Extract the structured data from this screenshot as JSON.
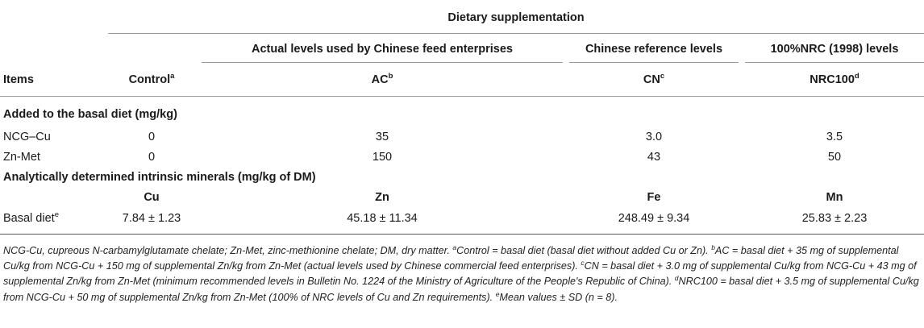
{
  "header": {
    "dietary_supplementation": "Dietary supplementation",
    "group_actual": "Actual levels used by Chinese feed enterprises",
    "group_chinese": "Chinese reference levels",
    "group_nrc": "100%NRC (1998) levels",
    "items": "Items",
    "control": "Control",
    "control_sup": "a",
    "ac": "AC",
    "ac_sup": "b",
    "cn": "CN",
    "cn_sup": "c",
    "nrc100": "NRC100",
    "nrc100_sup": "d"
  },
  "section1": {
    "title": "Added to the basal diet (mg/kg)",
    "rows": [
      {
        "item": "NCG–Cu",
        "control": "0",
        "ac": "35",
        "cn": "3.0",
        "nrc": "3.5"
      },
      {
        "item": "Zn-Met",
        "control": "0",
        "ac": "150",
        "cn": "43",
        "nrc": "50"
      }
    ]
  },
  "section2": {
    "title": "Analytically determined intrinsic minerals (mg/kg of DM)",
    "cols": [
      "Cu",
      "Zn",
      "Fe",
      "Mn"
    ],
    "row_label": "Basal diet",
    "row_label_sup": "e",
    "values": [
      "7.84 ± 1.23",
      "45.18 ± 11.34",
      "248.49 ± 9.34",
      "25.83 ± 2.23"
    ]
  },
  "footnote": {
    "abbrev": "NCG-Cu, cupreous N-carbamylglutamate chelate; Zn-Met, zinc-methionine chelate; DM, dry matter.",
    "a_mark": "a",
    "a_text": "Control = basal diet (basal diet without added Cu or Zn).",
    "b_mark": "b",
    "b_text": "AC = basal diet + 35 mg of supplemental Cu/kg from NCG-Cu + 150 mg of supplemental Zn/kg from Zn-Met (actual levels used by Chinese commercial feed enterprises).",
    "c_mark": "c",
    "c_text": "CN = basal diet + 3.0 mg of supplemental Cu/kg from NCG-Cu + 43 mg of supplemental Zn/kg from Zn-Met (minimum recommended levels in Bulletin No. 1224 of the Ministry of Agriculture of the People's Republic of China).",
    "d_mark": "d",
    "d_text": "NRC100 = basal diet + 3.5 mg of supplemental Cu/kg from NCG-Cu + 50 mg of supplemental Zn/kg from Zn-Met (100% of NRC levels of Cu and Zn requirements).",
    "e_mark": "e",
    "e_text": "Mean values ± SD (n = 8)."
  }
}
